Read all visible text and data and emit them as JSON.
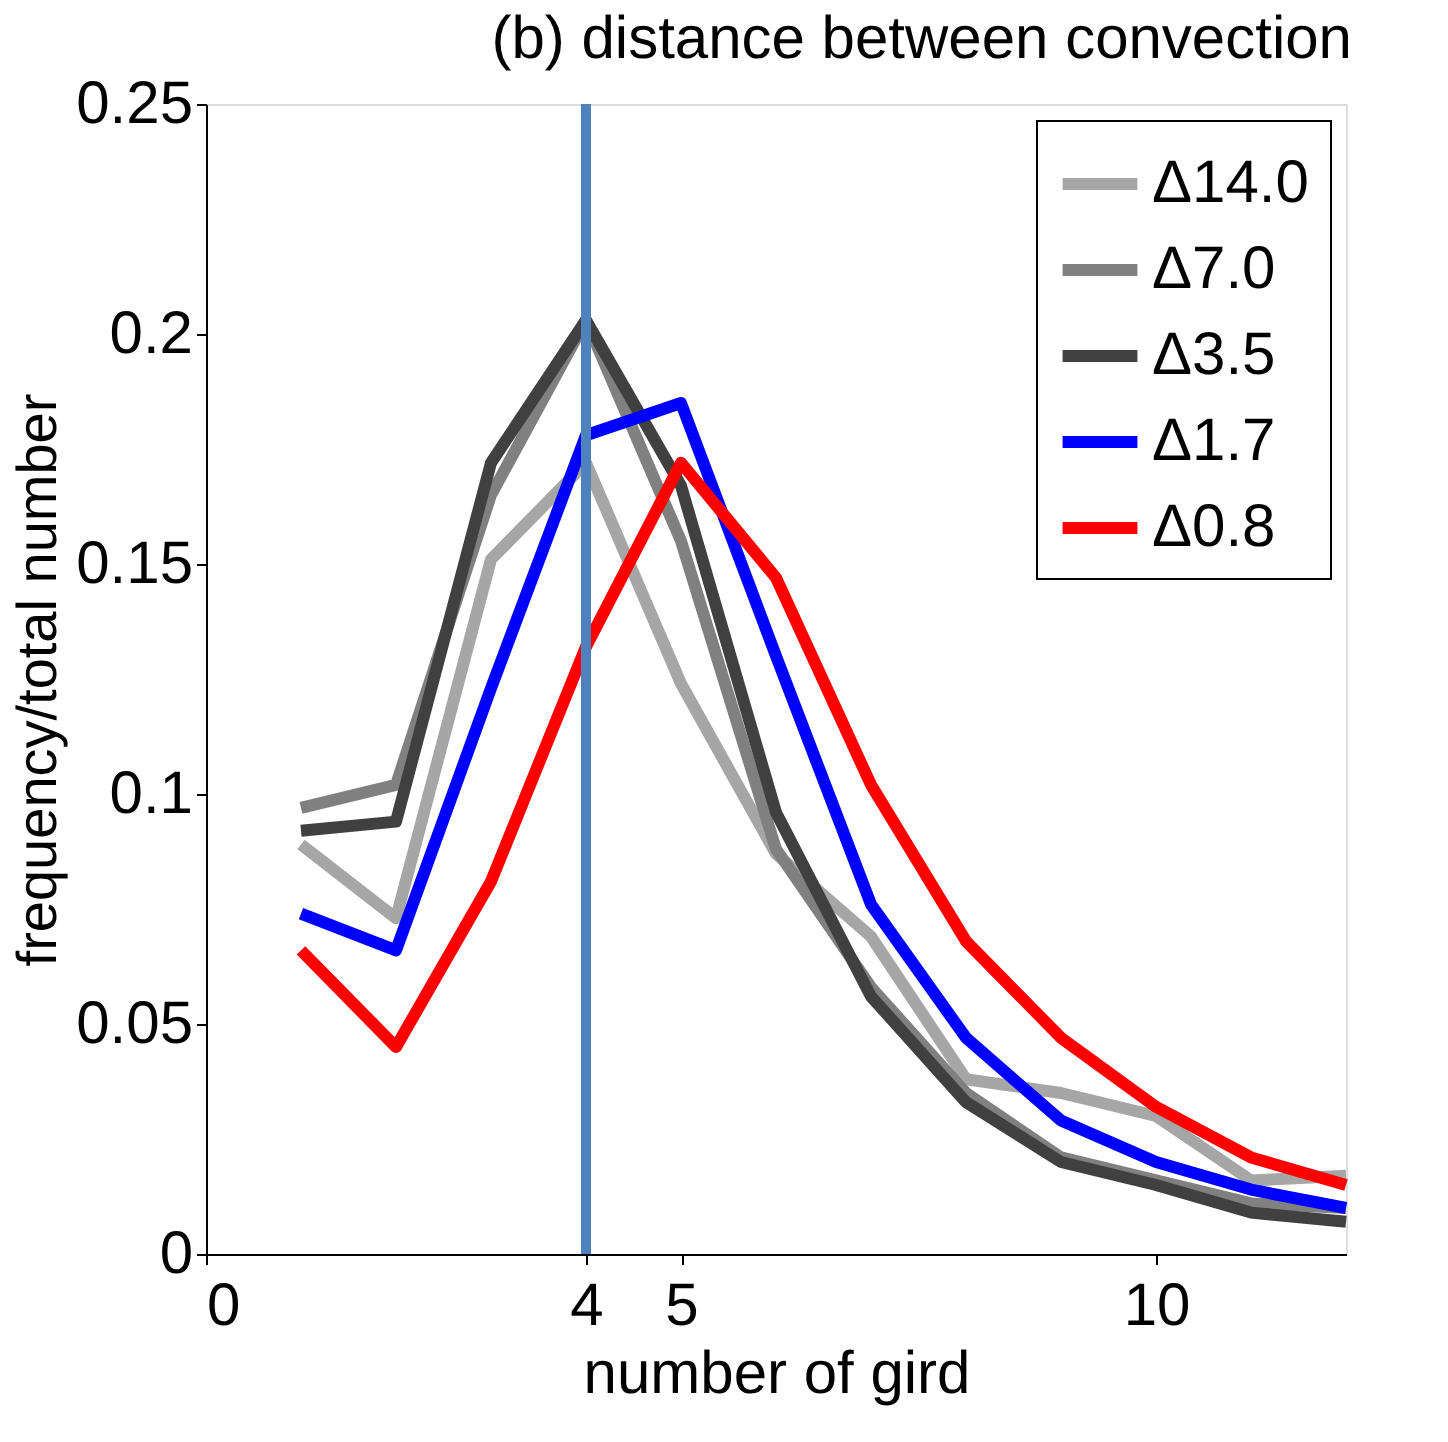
{
  "chart_data": {
    "type": "line",
    "title": "(b) distance between convection",
    "xlabel": "number of gird",
    "ylabel": "frequency/total number",
    "x": [
      1,
      2,
      3,
      4,
      5,
      6,
      7,
      8,
      9,
      10,
      11,
      12
    ],
    "series": [
      {
        "name": "Δ14.0",
        "color": "#a6a6a6",
        "values": [
          0.089,
          0.073,
          0.151,
          0.172,
          0.124,
          0.087,
          0.069,
          0.038,
          0.035,
          0.03,
          0.016,
          0.017
        ]
      },
      {
        "name": "Δ7.0",
        "color": "#808080",
        "values": [
          0.097,
          0.102,
          0.165,
          0.203,
          0.155,
          0.088,
          0.058,
          0.035,
          0.021,
          0.016,
          0.011,
          0.01
        ]
      },
      {
        "name": "Δ3.5",
        "color": "#404040",
        "values": [
          0.092,
          0.094,
          0.172,
          0.203,
          0.167,
          0.096,
          0.056,
          0.033,
          0.02,
          0.015,
          0.009,
          0.007
        ]
      },
      {
        "name": "Δ1.7",
        "color": "#0000ff",
        "values": [
          0.074,
          0.066,
          0.123,
          0.178,
          0.185,
          0.13,
          0.076,
          0.047,
          0.029,
          0.02,
          0.014,
          0.01
        ]
      },
      {
        "name": "Δ0.8",
        "color": "#ff0000",
        "values": [
          0.066,
          0.045,
          0.081,
          0.132,
          0.172,
          0.147,
          0.102,
          0.068,
          0.047,
          0.032,
          0.021,
          0.015
        ]
      }
    ],
    "xlim": [
      0,
      12
    ],
    "xticks": [
      0,
      4,
      5,
      10
    ],
    "ylim": [
      0,
      0.25
    ],
    "yticks": [
      0,
      0.05,
      0.1,
      0.15,
      0.2,
      0.25
    ],
    "ref_lines": [
      {
        "axis": "x",
        "value": 4,
        "color": "#4f81bd"
      }
    ],
    "legend": "top right",
    "grid": false,
    "marker": "none",
    "line_style": "solid"
  }
}
